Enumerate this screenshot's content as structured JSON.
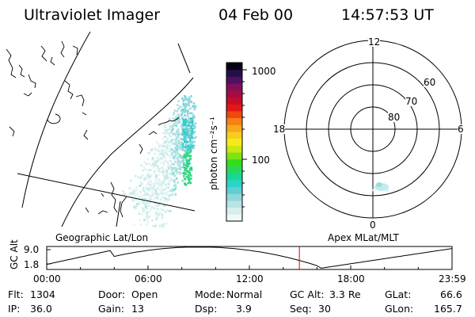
{
  "header": {
    "instrument": "Ultraviolet Imager",
    "date": "04 Feb 00",
    "time": "14:57:53 UT"
  },
  "colorbar": {
    "label": "photon cm⁻²s⁻¹",
    "ticks": [
      "1000",
      "100"
    ],
    "colors": [
      "#f0f8f8",
      "#d8eeee",
      "#b8e4e4",
      "#90d8dc",
      "#5cd0d4",
      "#2cd4c8",
      "#18d898",
      "#2ad858",
      "#34dc1c",
      "#7ce414",
      "#c8e810",
      "#f4ec18",
      "#f8cc20",
      "#f8a81c",
      "#f88014",
      "#f04810",
      "#e01818",
      "#c80c28",
      "#a40c44",
      "#80105c",
      "#501060",
      "#241048",
      "#060014"
    ]
  },
  "geo_panel": {
    "label": "Geographic Lat/Lon"
  },
  "polar_panel": {
    "label": "Apex MLat/MLT",
    "mlt_labels": [
      "12",
      "18",
      "6",
      "0"
    ],
    "lat_labels": [
      "60",
      "70",
      "80"
    ]
  },
  "altitude_plot": {
    "ylabel": "GC Alt",
    "yticks": [
      "9.0",
      "1.8"
    ],
    "xticks": [
      "00:00",
      "06:00",
      "12:00",
      "18:00",
      "23:59"
    ],
    "current_time_hours": 14.96
  },
  "status": {
    "flt": {
      "label": "Flt:",
      "value": "1304"
    },
    "ip": {
      "label": "IP:",
      "value": "36.0"
    },
    "door": {
      "label": "Door:",
      "value": "Open"
    },
    "gain": {
      "label": "Gain:",
      "value": "13"
    },
    "mode": {
      "label": "Mode:",
      "value": "Normal"
    },
    "dsp": {
      "label": "Dsp:",
      "value": "3.9"
    },
    "gcalt": {
      "label": "GC Alt:",
      "value": "3.3 Re"
    },
    "seq": {
      "label": "Seq:",
      "value": "30"
    },
    "glat": {
      "label": "GLat:",
      "value": "66.6"
    },
    "glon": {
      "label": "GLon:",
      "value": "165.7"
    }
  }
}
